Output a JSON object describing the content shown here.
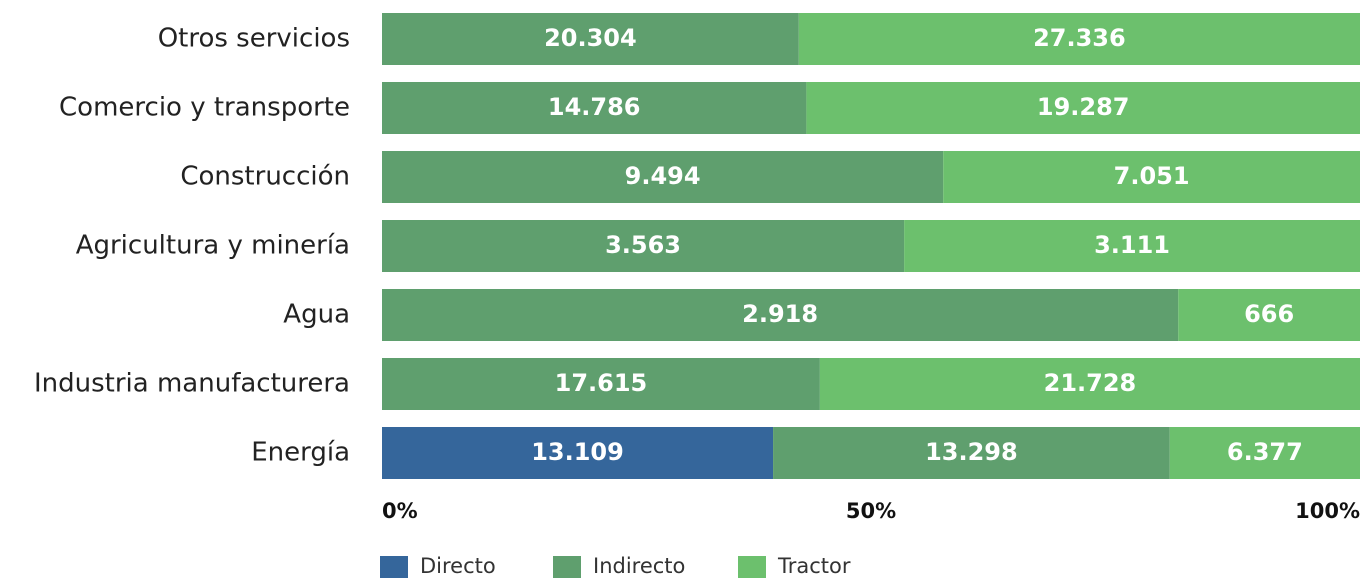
{
  "chart_data": {
    "type": "bar",
    "orientation": "horizontal",
    "stack": "percent",
    "categories": [
      "Otros servicios",
      "Comercio y transporte",
      "Construcción",
      "Agricultura y minería",
      "Agua",
      "Industria manufacturera",
      "Energía"
    ],
    "series": [
      {
        "name": "Directo",
        "color": "#35669b",
        "values": [
          null,
          null,
          null,
          null,
          null,
          null,
          13109
        ],
        "value_labels": [
          null,
          null,
          null,
          null,
          null,
          null,
          "13.109"
        ]
      },
      {
        "name": "Indirecto",
        "color": "#5f9f6e",
        "values": [
          20304,
          14786,
          9494,
          3563,
          2918,
          17615,
          13298
        ],
        "value_labels": [
          "20.304",
          "14.786",
          "9.494",
          "3.563",
          "2.918",
          "17.615",
          "13.298"
        ]
      },
      {
        "name": "Tractor",
        "color": "#6cc06d",
        "values": [
          27336,
          19287,
          7051,
          3111,
          666,
          21728,
          6377
        ],
        "value_labels": [
          "27.336",
          "19.287",
          "7.051",
          "3.111",
          "666",
          "21.728",
          "6.377"
        ]
      }
    ],
    "xlim": [
      0,
      100
    ],
    "xticks": [
      {
        "value": 0,
        "label": "0%"
      },
      {
        "value": 50,
        "label": "50%"
      },
      {
        "value": 100,
        "label": "100%"
      }
    ],
    "legend": "bottom"
  }
}
